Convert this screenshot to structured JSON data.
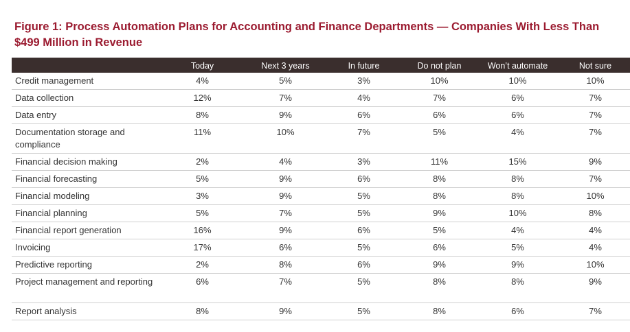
{
  "figure": {
    "title": "Figure 1: Process Automation Plans for Accounting and Finance Departments — Companies With Less Than $499 Million in Revenue"
  },
  "table": {
    "columns": [
      "",
      "Today",
      "Next 3 years",
      "In future",
      "Do not plan",
      "Won’t automate",
      "Not sure"
    ],
    "rows": [
      {
        "label": "Credit management",
        "values": [
          "4%",
          "5%",
          "3%",
          "10%",
          "10%",
          "10%"
        ]
      },
      {
        "label": "Data collection",
        "values": [
          "12%",
          "7%",
          "4%",
          "7%",
          "6%",
          "7%"
        ]
      },
      {
        "label": "Data entry",
        "values": [
          "8%",
          "9%",
          "6%",
          "6%",
          "6%",
          "7%"
        ]
      },
      {
        "label": "Documentation storage and compliance",
        "values": [
          "11%",
          "10%",
          "7%",
          "5%",
          "4%",
          "7%"
        ]
      },
      {
        "label": "Financial decision making",
        "values": [
          "2%",
          "4%",
          "3%",
          "11%",
          "15%",
          "9%"
        ]
      },
      {
        "label": "Financial forecasting",
        "values": [
          "5%",
          "9%",
          "6%",
          "8%",
          "8%",
          "7%"
        ]
      },
      {
        "label": "Financial modeling",
        "values": [
          "3%",
          "9%",
          "5%",
          "8%",
          "8%",
          "10%"
        ]
      },
      {
        "label": "Financial planning",
        "values": [
          "5%",
          "7%",
          "5%",
          "9%",
          "10%",
          "8%"
        ]
      },
      {
        "label": "Financial report generation",
        "values": [
          "16%",
          "9%",
          "6%",
          "5%",
          "4%",
          "4%"
        ]
      },
      {
        "label": "Invoicing",
        "values": [
          "17%",
          "6%",
          "5%",
          "6%",
          "5%",
          "4%"
        ]
      },
      {
        "label": "Predictive reporting",
        "values": [
          "2%",
          "8%",
          "6%",
          "9%",
          "9%",
          "10%"
        ]
      },
      {
        "label": "Project management and reporting",
        "values": [
          "6%",
          "7%",
          "5%",
          "8%",
          "8%",
          "9%"
        ]
      },
      {
        "label": "Report analysis",
        "values": [
          "8%",
          "9%",
          "5%",
          "8%",
          "6%",
          "7%"
        ]
      }
    ]
  },
  "colors": {
    "title": "#9b1b30",
    "header_bg": "#3a2e2d",
    "header_text": "#ffffff",
    "row_border": "#cfcfcf"
  }
}
